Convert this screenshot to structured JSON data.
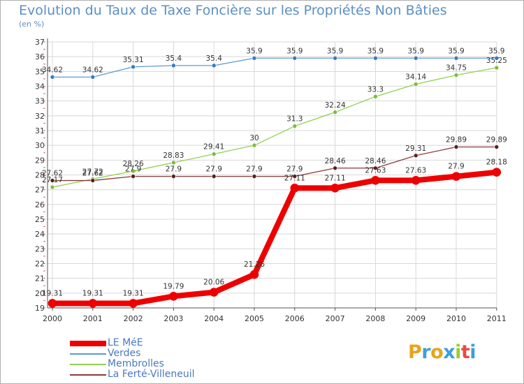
{
  "title": "Evolution du Taux de Taxe Foncière sur les Propriétés Non Bâties",
  "unit": "(en %)",
  "logo": "Proxiti",
  "logo_colors": [
    "#e8a31c",
    "#3aa0d8",
    "#e8a31c",
    "#3aa0d8",
    "#9acd32",
    "#e84c3d",
    "#3aa0d8"
  ],
  "chart_data": {
    "type": "line",
    "title": "Evolution du Taux de Taxe Foncière sur les Propriétés Non Bâties",
    "ylabel": "(en %)",
    "xlabel": "",
    "ylim": [
      19,
      37
    ],
    "yticks": [
      "19",
      "20",
      "21",
      "22",
      "23",
      "24",
      "25",
      "26",
      "27",
      "28",
      "29",
      "30",
      "31",
      "32",
      "33",
      "34",
      "35",
      "36",
      "37"
    ],
    "categories": [
      "2000",
      "2001",
      "2002",
      "2003",
      "2004",
      "2005",
      "2006",
      "2007",
      "2008",
      "2009",
      "2010",
      "2011"
    ],
    "series": [
      {
        "name": "Verdes",
        "color": "#5b9bd5",
        "marker": "#3a7bbf",
        "width": 1.3,
        "values": [
          34.62,
          34.62,
          35.31,
          35.4,
          35.4,
          35.9,
          35.9,
          35.9,
          35.9,
          35.9,
          35.9,
          35.9
        ],
        "labels": [
          "34.62",
          "34.62",
          "35.31",
          "35.4",
          "35.4",
          "35.9",
          "35.9",
          "35.9",
          "35.9",
          "35.9",
          "35.9",
          "35.9"
        ]
      },
      {
        "name": "Membrolles",
        "color": "#92d050",
        "marker": "#7cbd3a",
        "width": 1.3,
        "values": [
          27.17,
          27.72,
          28.26,
          28.83,
          29.41,
          30,
          31.3,
          32.24,
          33.3,
          34.14,
          34.75,
          35.25
        ],
        "labels": [
          "27.17",
          "27.72",
          "28.26",
          "28.83",
          "29.41",
          "30",
          "31.3",
          "32.24",
          "33.3",
          "34.14",
          "34.75",
          "35.25"
        ]
      },
      {
        "name": "La Ferté-Villeneuil",
        "color": "#8b3a3a",
        "marker": "#5a1f1f",
        "width": 1.3,
        "values": [
          27.62,
          27.62,
          27.9,
          27.9,
          27.9,
          27.9,
          27.9,
          28.46,
          28.46,
          29.31,
          29.89,
          29.89
        ],
        "labels": [
          "27.62",
          "27.62",
          "27.9",
          "27.9",
          "27.9",
          "27.9",
          "27.9",
          "28.46",
          "28.46",
          "29.31",
          "29.89",
          "29.89"
        ]
      },
      {
        "name": "LE MéE",
        "color": "#ee0000",
        "marker": "#ee0000",
        "width": 8,
        "values": [
          19.31,
          19.31,
          19.31,
          19.79,
          20.06,
          21.26,
          27.11,
          27.11,
          27.63,
          27.63,
          27.9,
          28.18
        ],
        "labels": [
          "19.31",
          "19.31",
          "19.31",
          "19.79",
          "20.06",
          "21.26",
          "27.11",
          "27.11",
          "27.63",
          "27.63",
          "27.9",
          "28.18"
        ]
      }
    ]
  },
  "legend": [
    {
      "name": "LE MéE",
      "color": "#ee0000",
      "thick": true
    },
    {
      "name": "Verdes",
      "color": "#5b9bd5",
      "thick": false
    },
    {
      "name": "Membrolles",
      "color": "#92d050",
      "thick": false
    },
    {
      "name": "La Ferté-Villeneuil",
      "color": "#8b3a3a",
      "thick": false
    }
  ]
}
